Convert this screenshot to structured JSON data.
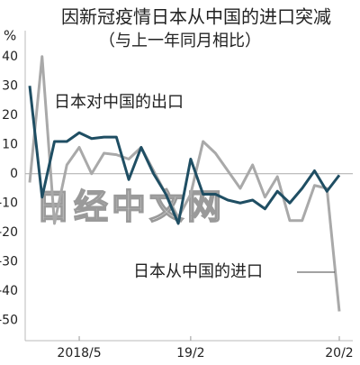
{
  "chart_data": {
    "type": "line",
    "title": "因新冠疫情日本从中国的进口突减",
    "subtitle": "（与上一年同月相比）",
    "y_label": "%",
    "watermark": "日经中文网",
    "categories": [
      null,
      null,
      null,
      null,
      "2018/5",
      null,
      null,
      null,
      null,
      null,
      null,
      null,
      null,
      "19/2",
      null,
      null,
      null,
      null,
      null,
      null,
      null,
      null,
      null,
      null,
      null,
      "20/2"
    ],
    "series": [
      {
        "name": "日本对中国的出口",
        "color": "#1f4e63",
        "values": [
          30,
          -8,
          11,
          11,
          14,
          12,
          12.5,
          12.5,
          -2,
          9,
          0,
          -7,
          -17,
          5,
          -7,
          -7,
          -9,
          -10,
          -9,
          -12,
          -6,
          -10,
          -5,
          1,
          -6,
          -0.5
        ]
      },
      {
        "name": "日本从中国的进口",
        "color": "#a9a9a9",
        "values": [
          -3,
          40,
          -17,
          3,
          9,
          0,
          7,
          6.5,
          5,
          9,
          1,
          -7,
          -15,
          -7,
          11,
          7,
          1,
          -5,
          3,
          -8,
          -1,
          -16,
          -16,
          -4,
          -5,
          -47
        ]
      }
    ],
    "ylim": [
      -57,
      47
    ],
    "yticks": [
      40,
      30,
      20,
      10,
      0,
      -10,
      -20,
      -30,
      -40,
      -50
    ],
    "grid": false
  }
}
